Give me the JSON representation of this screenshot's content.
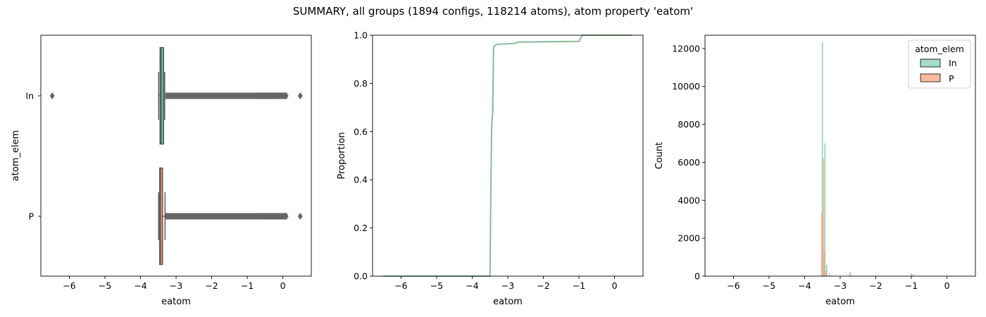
{
  "figure_title": "SUMMARY, all groups (1894 configs, 118214 atoms), atom property 'eatom'",
  "colors": {
    "In": "#66c2a5",
    "P": "#fc8d62",
    "whisker": "#555555"
  },
  "chart_data": [
    {
      "type": "box",
      "title": "",
      "xlabel": "eatom",
      "ylabel": "atom_elem",
      "xlim": [
        -6.8,
        0.8
      ],
      "xticks": [
        -6,
        -5,
        -4,
        -3,
        -2,
        -1,
        0
      ],
      "xtick_labels": [
        "−6",
        "−5",
        "−4",
        "−3",
        "−2",
        "−1",
        "0"
      ],
      "categories": [
        "In",
        "P"
      ],
      "boxes": [
        {
          "name": "In",
          "q1": -3.45,
          "median": -3.42,
          "q3": -3.35,
          "whisker_low": -3.49,
          "whisker_high": -3.32,
          "outliers_lo": [
            -6.48
          ],
          "outlier_band": [
            -3.3,
            0.12
          ],
          "outliers_hi": [
            0.49
          ]
        },
        {
          "name": "P",
          "q1": -3.46,
          "median": -3.44,
          "q3": -3.38,
          "whisker_low": -3.49,
          "whisker_high": -3.31,
          "outliers_lo": [],
          "outlier_band": [
            -3.3,
            0.12
          ],
          "outliers_hi": [
            0.49
          ]
        }
      ]
    },
    {
      "type": "line",
      "title": "",
      "xlabel": "eatom",
      "ylabel": "Proportion",
      "xlim": [
        -6.8,
        0.8
      ],
      "ylim": [
        0.0,
        1.0
      ],
      "xticks": [
        -6,
        -5,
        -4,
        -3,
        -2,
        -1,
        0
      ],
      "xtick_labels": [
        "−6",
        "−5",
        "−4",
        "−3",
        "−2",
        "−1",
        "0"
      ],
      "yticks": [
        0.0,
        0.2,
        0.4,
        0.6,
        0.8,
        1.0
      ],
      "ytick_labels": [
        "0.0",
        "0.2",
        "0.4",
        "0.6",
        "0.8",
        "1.0"
      ],
      "series": [
        {
          "name": "In",
          "x": [
            -6.5,
            -3.5,
            -3.48,
            -3.45,
            -3.42,
            -3.4,
            -3.35,
            -3.3,
            -2.8,
            -2.7,
            -1.0,
            -0.95,
            -0.9,
            0.5
          ],
          "y": [
            0.0,
            0.0,
            0.3,
            0.65,
            0.68,
            0.95,
            0.96,
            0.962,
            0.966,
            0.972,
            0.975,
            0.99,
            1.0,
            1.0
          ]
        },
        {
          "name": "P",
          "x": [
            -6.5,
            -3.5,
            -3.48,
            -3.46,
            -3.43,
            -3.4,
            -3.35,
            -3.3,
            -2.8,
            -2.7,
            -1.0,
            -0.95,
            -0.9,
            0.5
          ],
          "y": [
            0.0,
            0.0,
            0.25,
            0.6,
            0.67,
            0.95,
            0.958,
            0.962,
            0.966,
            0.971,
            0.974,
            0.99,
            1.0,
            1.0
          ]
        }
      ]
    },
    {
      "type": "histogram",
      "title": "",
      "xlabel": "eatom",
      "ylabel": "Count",
      "xlim": [
        -6.8,
        0.8
      ],
      "ylim": [
        0,
        12700
      ],
      "xticks": [
        -6,
        -5,
        -4,
        -3,
        -2,
        -1,
        0
      ],
      "xtick_labels": [
        "−6",
        "−5",
        "−4",
        "−3",
        "−2",
        "−1",
        "0"
      ],
      "yticks": [
        0,
        2000,
        4000,
        6000,
        8000,
        10000,
        12000
      ],
      "ytick_labels": [
        "0",
        "2000",
        "4000",
        "6000",
        "8000",
        "10000",
        "12000"
      ],
      "legend_title": "atom_elem",
      "legend_position": "top-right",
      "series": [
        {
          "name": "In",
          "bins": [
            {
              "x": -3.5,
              "count": 12350
            },
            {
              "x": -3.43,
              "count": 7000
            },
            {
              "x": -3.38,
              "count": 600
            },
            {
              "x": -3.3,
              "count": 150
            },
            {
              "x": -2.72,
              "count": 230
            },
            {
              "x": -1.0,
              "count": 160
            },
            {
              "x": -0.95,
              "count": 90
            },
            {
              "x": -6.3,
              "count": 20
            },
            {
              "x": 0.2,
              "count": 15
            }
          ]
        },
        {
          "name": "P",
          "bins": [
            {
              "x": -3.52,
              "count": 3400
            },
            {
              "x": -3.47,
              "count": 6200
            },
            {
              "x": -3.45,
              "count": 1300
            },
            {
              "x": -3.4,
              "count": 300
            },
            {
              "x": -2.72,
              "count": 80
            },
            {
              "x": -1.0,
              "count": 60
            }
          ]
        }
      ]
    }
  ]
}
